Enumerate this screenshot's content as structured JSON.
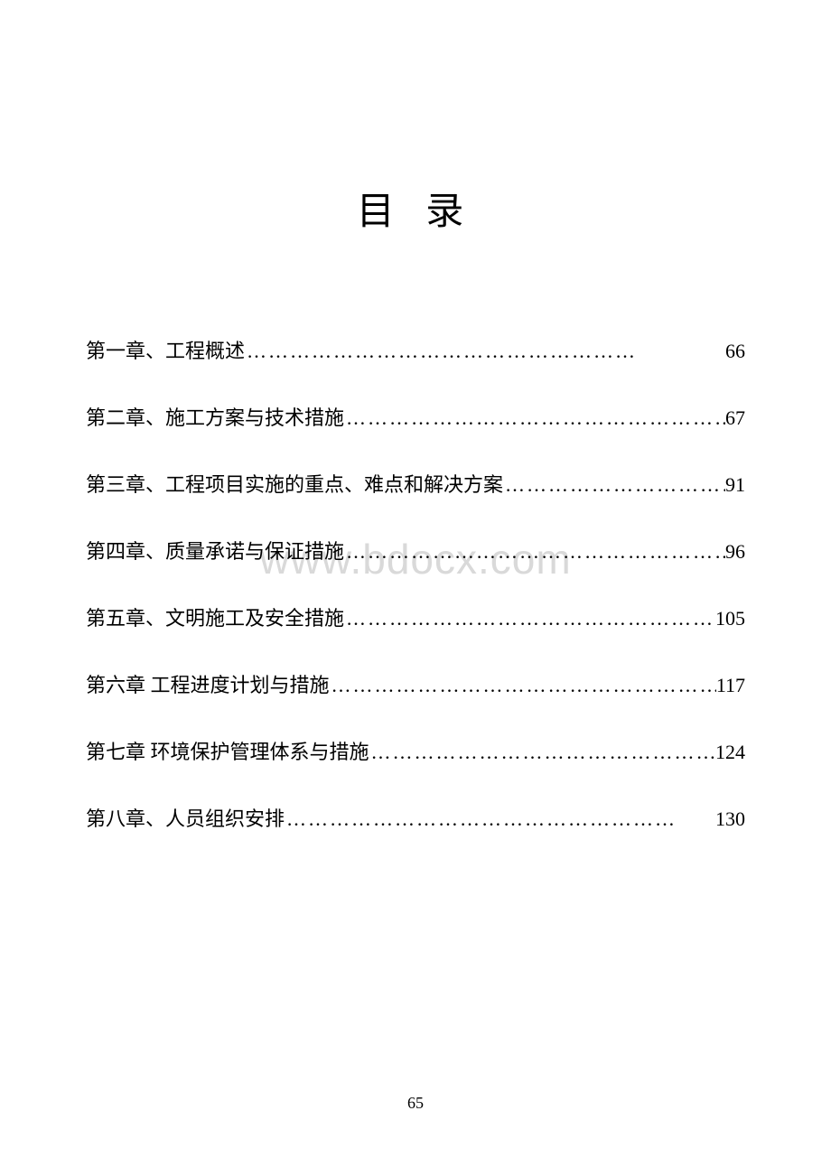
{
  "title": "目 录",
  "watermark": "www.bdocx.com",
  "page_number": "65",
  "text_color": "#000000",
  "background_color": "#ffffff",
  "watermark_color": "#d9d9d9",
  "title_fontsize": 42,
  "entry_fontsize": 22,
  "toc": {
    "entries": [
      {
        "label": "第一章、工程概述 ",
        "page": "66"
      },
      {
        "label": "第二章、施工方案与技术措施 ",
        "page": "67"
      },
      {
        "label": "第三章、工程项目实施的重点、难点和解决方案 ",
        "page": "91"
      },
      {
        "label": "第四章、质量承诺与保证措施 ",
        "page": "96"
      },
      {
        "label": "第五章、文明施工及安全措施",
        "page": "105"
      },
      {
        "label": "第六章   工程进度计划与措施",
        "page": "117"
      },
      {
        "label": "第七章   环境保护管理体系与措施",
        "page": "124"
      },
      {
        "label": "第八章、人员组织安排",
        "page": "130"
      }
    ]
  }
}
